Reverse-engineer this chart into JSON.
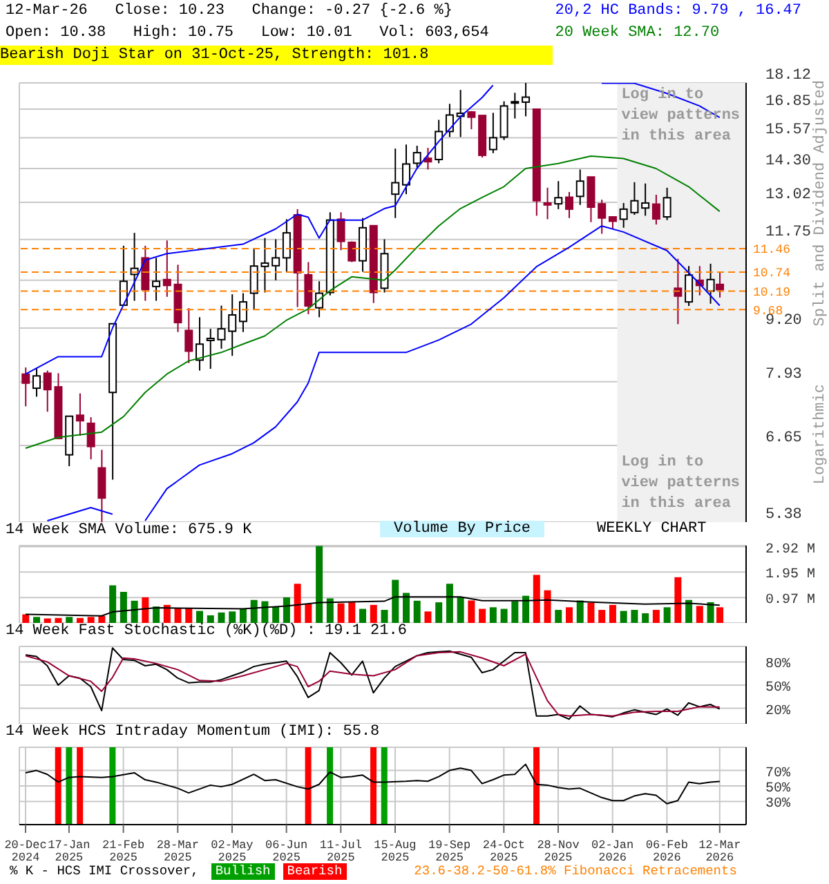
{
  "chart_data": [
    {
      "type": "candlestick",
      "title": "12-Mar-26   Close: 10.23   Change: -0.27 {-2.6 %}",
      "subtitle": "Open: 10.38   High: 10.75   Low: 10.01   Vol: 603,654",
      "y2label": "Split and Dividend Adjusted",
      "annotations": [
        "Bearish Doji Star on 31-Oct-25, Strength: 101.8",
        "Log in to view patterns in this area",
        "Logarithmic"
      ],
      "x": [
        "2024-12-20",
        "2024-12-27",
        "2025-01-03",
        "2025-01-10",
        "2025-01-17",
        "2025-01-24",
        "2025-01-31",
        "2025-02-07",
        "2025-02-14",
        "2025-02-21",
        "2025-02-28",
        "2025-03-07",
        "2025-03-14",
        "2025-03-21",
        "2025-03-28",
        "2025-04-04",
        "2025-04-11",
        "2025-04-18",
        "2025-04-25",
        "2025-05-02",
        "2025-05-09",
        "2025-05-16",
        "2025-05-23",
        "2025-05-30",
        "2025-06-06",
        "2025-06-13",
        "2025-06-20",
        "2025-06-27",
        "2025-07-04",
        "2025-07-11",
        "2025-07-18",
        "2025-07-25",
        "2025-08-01",
        "2025-08-08",
        "2025-08-15",
        "2025-08-22",
        "2025-08-29",
        "2025-09-05",
        "2025-09-12",
        "2025-09-19",
        "2025-09-26",
        "2025-10-03",
        "2025-10-10",
        "2025-10-17",
        "2025-10-24",
        "2025-10-31",
        "2025-11-07",
        "2025-11-14",
        "2025-11-21",
        "2025-11-28",
        "2025-12-05",
        "2025-12-12",
        "2025-12-19",
        "2025-12-26",
        "2026-01-02",
        "2026-01-09",
        "2026-01-16",
        "2026-01-23",
        "2026-01-30",
        "2026-02-06",
        "2026-02-13",
        "2026-02-20",
        "2026-02-27",
        "2026-03-06",
        "2026-03-12"
      ],
      "ohlc": [
        [
          8.1,
          8.25,
          7.41,
          7.9
        ],
        [
          7.79,
          8.23,
          7.61,
          8.06
        ],
        [
          8.12,
          8.18,
          7.3,
          7.76
        ],
        [
          7.82,
          8.12,
          6.78,
          6.78
        ],
        [
          6.48,
          7.21,
          6.28,
          7.21
        ],
        [
          7.23,
          7.68,
          6.83,
          7.12
        ],
        [
          7.07,
          7.19,
          6.4,
          6.63
        ],
        [
          6.25,
          6.57,
          5.38,
          5.75
        ],
        [
          7.7,
          9.31,
          6.05,
          9.31
        ],
        [
          9.8,
          11.55,
          9.8,
          10.47
        ],
        [
          10.67,
          11.97,
          9.92,
          10.85
        ],
        [
          11.17,
          11.55,
          9.92,
          10.23
        ],
        [
          10.32,
          11.17,
          9.92,
          10.47
        ],
        [
          10.52,
          11.72,
          10.03,
          10.35
        ],
        [
          10.38,
          10.96,
          9.1,
          9.34
        ],
        [
          9.14,
          9.72,
          8.35,
          8.63
        ],
        [
          8.42,
          9.48,
          8.18,
          8.8
        ],
        [
          8.89,
          9.18,
          8.22,
          8.94
        ],
        [
          8.91,
          9.79,
          8.69,
          9.18
        ],
        [
          9.12,
          10.1,
          8.52,
          9.54
        ],
        [
          9.37,
          10.13,
          9.1,
          9.89
        ],
        [
          10.13,
          11.45,
          9.67,
          10.92
        ],
        [
          10.91,
          11.8,
          10.15,
          11.01
        ],
        [
          10.93,
          11.76,
          10.5,
          11.17
        ],
        [
          11.17,
          12.43,
          10.75,
          11.97
        ],
        [
          12.58,
          12.78,
          9.75,
          10.72
        ],
        [
          10.66,
          11.04,
          9.56,
          9.78
        ],
        [
          9.73,
          10.47,
          9.48,
          10.13
        ],
        [
          10.15,
          12.67,
          10.07,
          12.4
        ],
        [
          12.43,
          12.67,
          11.41,
          11.69
        ],
        [
          11.66,
          11.69,
          11.04,
          11.08
        ],
        [
          11.08,
          12.47,
          10.75,
          12.14
        ],
        [
          12.21,
          12.21,
          9.86,
          10.15
        ],
        [
          10.27,
          11.76,
          10.15,
          11.3
        ],
        [
          13.32,
          15.11,
          12.47,
          13.75
        ],
        [
          13.67,
          15.28,
          13.32,
          14.48
        ],
        [
          14.51,
          15.23,
          14.34,
          14.94
        ],
        [
          14.71,
          15.14,
          14.26,
          14.57
        ],
        [
          14.66,
          16.36,
          14.51,
          15.84
        ],
        [
          15.84,
          17.1,
          15.6,
          16.58
        ],
        [
          16.52,
          17.77,
          15.6,
          16.66
        ],
        [
          16.72,
          16.76,
          15.94,
          16.48
        ],
        [
          16.56,
          16.56,
          14.74,
          14.83
        ],
        [
          15.07,
          16.68,
          14.92,
          15.57
        ],
        [
          15.6,
          17.22,
          15.47,
          17.0
        ],
        [
          17.14,
          17.63,
          16.42,
          17.2
        ],
        [
          17.18,
          18.12,
          16.52,
          17.42
        ],
        [
          16.85,
          16.85,
          12.55,
          13.08
        ],
        [
          13.0,
          13.56,
          12.43,
          12.93
        ],
        [
          12.97,
          13.81,
          12.78,
          13.19
        ],
        [
          13.21,
          13.4,
          12.47,
          12.78
        ],
        [
          13.24,
          14.26,
          12.93,
          13.81
        ],
        [
          13.97,
          13.97,
          12.33,
          12.85
        ],
        [
          12.97,
          13.12,
          11.94,
          12.47
        ],
        [
          12.51,
          12.51,
          12.11,
          12.36
        ],
        [
          12.43,
          13.0,
          12.14,
          12.78
        ],
        [
          12.66,
          13.77,
          12.58,
          13.08
        ],
        [
          12.82,
          13.72,
          12.55,
          13.0
        ],
        [
          12.96,
          13.3,
          12.25,
          12.44
        ],
        [
          12.51,
          13.56,
          12.4,
          13.19
        ],
        [
          10.27,
          11.14,
          9.3,
          10.05
        ],
        [
          9.89,
          10.92,
          9.78,
          10.65
        ],
        [
          10.5,
          10.92,
          10.07,
          10.35
        ],
        [
          10.19,
          10.99,
          9.84,
          10.52
        ],
        [
          10.38,
          10.75,
          10.01,
          10.23
        ]
      ],
      "colors": [
        "#990033",
        "#ffffff",
        "#990033",
        "#990033",
        "#ffffff",
        "#990033",
        "#990033",
        "#990033",
        "#ffffff",
        "#ffffff",
        "#ffffff",
        "#990033",
        "#ffffff",
        "#990033",
        "#990033",
        "#990033",
        "#ffffff",
        "#ffffff",
        "#ffffff",
        "#ffffff",
        "#ffffff",
        "#ffffff",
        "#ffffff",
        "#ffffff",
        "#ffffff",
        "#990033",
        "#990033",
        "#ffffff",
        "#ffffff",
        "#990033",
        "#990033",
        "#ffffff",
        "#990033",
        "#ffffff",
        "#ffffff",
        "#ffffff",
        "#ffffff",
        "#990033",
        "#ffffff",
        "#ffffff",
        "#ffffff",
        "#990033",
        "#990033",
        "#ffffff",
        "#ffffff",
        "#ffffff",
        "#ffffff",
        "#990033",
        "#990033",
        "#ffffff",
        "#990033",
        "#ffffff",
        "#990033",
        "#990033",
        "#990033",
        "#ffffff",
        "#ffffff",
        "#ffffff",
        "#990033",
        "#ffffff",
        "#990033",
        "#ffffff",
        "#990033",
        "#ffffff",
        "#990033"
      ],
      "series": [
        {
          "type": "line",
          "name": "20,2 HC Bands: 9.79 , 16.47",
          "color": "#0000ff",
          "x": [
            "2024-12-20",
            "2025-01-10",
            "2025-02-07",
            "2025-02-14",
            "2025-02-21",
            "2025-03-07",
            "2025-03-21",
            "2025-05-09",
            "2025-05-30",
            "2025-06-13",
            "2025-06-20",
            "2025-06-27",
            "2025-07-04",
            "2025-07-25",
            "2025-08-08",
            "2025-08-15",
            "2025-08-29",
            "2025-09-12",
            "2025-09-26",
            "2025-10-10",
            "2025-10-17",
            "2025-11-21",
            "2025-12-26",
            "2026-01-16",
            "2026-02-06",
            "2026-02-27",
            "2026-03-12"
          ],
          "values": [
            8.1,
            8.5,
            8.5,
            9.2,
            9.8,
            11.1,
            11.3,
            11.6,
            12.1,
            12.6,
            12.5,
            11.8,
            12.4,
            12.4,
            12.8,
            12.9,
            14.3,
            15.4,
            16.5,
            17.4,
            18.0,
            null,
            18.1,
            18.1,
            17.6,
            17.0,
            16.47
          ]
        },
        {
          "type": "line",
          "color": "#0000ff",
          "x": [
            "2025-01-03",
            "2025-01-17",
            "2025-01-31",
            "2025-02-14",
            "2025-02-21",
            "2025-03-07",
            "2025-03-21",
            "2025-04-11",
            "2025-05-02",
            "2025-05-16",
            "2025-05-30",
            "2025-06-13",
            "2025-06-20",
            "2025-06-27",
            "2025-07-04",
            "2025-08-08",
            "2025-08-22",
            "2025-09-12",
            "2025-10-03",
            "2025-10-24",
            "2025-11-14",
            "2025-12-05",
            "2025-12-26",
            "2026-01-09",
            "2026-02-06",
            "2026-02-27",
            "2026-03-12"
          ],
          "values": [
            5.4,
            5.5,
            5.6,
            5.5,
            null,
            5.4,
            5.9,
            6.3,
            6.5,
            6.7,
            7.0,
            7.5,
            7.9,
            8.6,
            8.6,
            8.6,
            8.6,
            8.9,
            9.3,
            10.0,
            10.9,
            11.5,
            12.2,
            12.0,
            11.4,
            10.4,
            9.79
          ]
        },
        {
          "type": "line",
          "name": "20 Week SMA: 12.70",
          "color": "#008000",
          "x": [
            "2024-12-20",
            "2025-01-10",
            "2025-02-07",
            "2025-02-21",
            "2025-03-07",
            "2025-03-21",
            "2025-04-04",
            "2025-04-25",
            "2025-05-09",
            "2025-05-23",
            "2025-06-06",
            "2025-06-20",
            "2025-07-04",
            "2025-07-18",
            "2025-08-08",
            "2025-08-15",
            "2025-08-29",
            "2025-09-12",
            "2025-09-26",
            "2025-10-10",
            "2025-10-24",
            "2025-11-07",
            "2025-11-28",
            "2025-12-19",
            "2026-01-09",
            "2026-01-30",
            "2026-02-20",
            "2026-03-12"
          ],
          "values": [
            6.6,
            6.8,
            6.9,
            7.2,
            7.7,
            8.1,
            8.4,
            8.6,
            8.8,
            9.0,
            9.4,
            9.7,
            10.2,
            10.6,
            10.5,
            10.8,
            11.5,
            12.2,
            12.8,
            13.2,
            13.6,
            14.3,
            14.5,
            14.8,
            14.7,
            14.3,
            13.6,
            12.7
          ]
        }
      ],
      "log": true,
      "ylim": [
        5.38,
        18.12
      ],
      "yticks": [
        5.38,
        6.65,
        7.93,
        {
          "value": 9.2,
          "label": "9.20"
        },
        {
          "value": 10.5,
          "label": null
        },
        11.75,
        13.02,
        {
          "value": 14.3,
          "label": "14.30"
        },
        15.57,
        16.85,
        18.12
      ],
      "xlim": [
        "2024-12-16",
        "2026-03-29"
      ],
      "xticks": [
        {
          "value": "2024-12-20",
          "label": null
        },
        {
          "value": "2025-01-17",
          "label": null
        },
        {
          "value": "2025-02-21",
          "label": null
        },
        {
          "value": "2025-03-28",
          "label": null
        },
        {
          "value": "2025-05-02",
          "label": null
        },
        {
          "value": "2025-06-06",
          "label": null
        },
        {
          "value": "2025-07-11",
          "label": null
        },
        {
          "value": "2025-08-15",
          "label": null
        },
        {
          "value": "2025-09-19",
          "label": null
        },
        {
          "value": "2025-10-24",
          "label": null
        },
        {
          "value": "2025-11-28",
          "label": null
        },
        {
          "value": "2026-01-02",
          "label": null
        },
        {
          "value": "2026-02-06",
          "label": null
        },
        {
          "value": "2026-03-12",
          "label": null
        }
      ],
      "ref_lines": [
        {
          "axis": "y",
          "value": 11.46,
          "label": "11.46",
          "color": "#ff8000",
          "line_style": "dashed"
        },
        {
          "axis": "y",
          "value": 10.74,
          "label": "10.74",
          "color": "#ff8000",
          "line_style": "dashed"
        },
        {
          "axis": "y",
          "value": 10.19,
          "label": "10.19",
          "color": "#ff8000",
          "line_style": "dashed"
        },
        {
          "axis": "y",
          "value": 9.68,
          "label": "9.68",
          "color": "#ff8000",
          "line_style": "dashed"
        }
      ],
      "bands": [
        {
          "axis": "x",
          "from": "2026-01-05",
          "to": "2026-03-29",
          "label": "Log in to view patterns in this area",
          "color": "#f0f0f0"
        }
      ],
      "grid": true,
      "legend": "top right",
      "tick_labels": "y"
    },
    {
      "type": "bar",
      "title": "14 Week SMA Volume: 675.9 K",
      "annotations": [
        "Volume By Price",
        "WEEKLY CHART"
      ],
      "x": [
        "2024-12-20",
        "2024-12-27",
        "2025-01-03",
        "2025-01-10",
        "2025-01-17",
        "2025-01-24",
        "2025-01-31",
        "2025-02-07",
        "2025-02-14",
        "2025-02-21",
        "2025-02-28",
        "2025-03-07",
        "2025-03-14",
        "2025-03-21",
        "2025-03-28",
        "2025-04-04",
        "2025-04-11",
        "2025-04-18",
        "2025-04-25",
        "2025-05-02",
        "2025-05-09",
        "2025-05-16",
        "2025-05-23",
        "2025-05-30",
        "2025-06-06",
        "2025-06-13",
        "2025-06-20",
        "2025-06-27",
        "2025-07-04",
        "2025-07-11",
        "2025-07-18",
        "2025-07-25",
        "2025-08-01",
        "2025-08-08",
        "2025-08-15",
        "2025-08-22",
        "2025-08-29",
        "2025-09-05",
        "2025-09-12",
        "2025-09-19",
        "2025-09-26",
        "2025-10-03",
        "2025-10-10",
        "2025-10-17",
        "2025-10-24",
        "2025-10-31",
        "2025-11-07",
        "2025-11-14",
        "2025-11-21",
        "2025-11-28",
        "2025-12-05",
        "2025-12-12",
        "2025-12-19",
        "2025-12-26",
        "2026-01-02",
        "2026-01-09",
        "2026-01-16",
        "2026-01-23",
        "2026-01-30",
        "2026-02-06",
        "2026-02-13",
        "2026-02-20",
        "2026-02-27",
        "2026-03-06",
        "2026-03-12"
      ],
      "values": [
        0.33,
        0.23,
        0.17,
        0.19,
        0.23,
        0.19,
        0.23,
        0.27,
        1.44,
        1.19,
        0.85,
        0.98,
        0.63,
        0.69,
        0.56,
        0.56,
        0.46,
        0.29,
        0.4,
        0.44,
        0.54,
        0.88,
        0.83,
        0.61,
        0.98,
        1.5,
        0.73,
        2.95,
        0.94,
        0.75,
        0.79,
        0.54,
        0.69,
        0.5,
        1.65,
        1.15,
        0.85,
        0.44,
        0.79,
        1.5,
        1.0,
        0.86,
        0.54,
        0.6,
        0.54,
        0.83,
        1.04,
        1.84,
        1.25,
        0.5,
        0.6,
        0.86,
        0.77,
        0.5,
        0.69,
        0.46,
        0.5,
        0.37,
        0.5,
        0.6,
        1.75,
        0.88,
        0.65,
        0.79,
        0.6
      ],
      "colors": [
        "#ff0000",
        "#008000",
        "#ff0000",
        "#ff0000",
        "#008000",
        "#ff0000",
        "#ff0000",
        "#ff0000",
        "#008000",
        "#008000",
        "#008000",
        "#ff0000",
        "#008000",
        "#ff0000",
        "#ff0000",
        "#ff0000",
        "#008000",
        "#008000",
        "#008000",
        "#008000",
        "#008000",
        "#008000",
        "#008000",
        "#008000",
        "#008000",
        "#ff0000",
        "#ff0000",
        "#008000",
        "#008000",
        "#ff0000",
        "#ff0000",
        "#008000",
        "#ff0000",
        "#008000",
        "#008000",
        "#008000",
        "#008000",
        "#ff0000",
        "#008000",
        "#008000",
        "#008000",
        "#ff0000",
        "#ff0000",
        "#008000",
        "#008000",
        "#008000",
        "#008000",
        "#ff0000",
        "#ff0000",
        "#008000",
        "#ff0000",
        "#008000",
        "#ff0000",
        "#ff0000",
        "#ff0000",
        "#008000",
        "#008000",
        "#008000",
        "#ff0000",
        "#008000",
        "#ff0000",
        "#008000",
        "#ff0000",
        "#008000",
        "#ff0000"
      ],
      "series": [
        {
          "type": "line",
          "color": "#000000",
          "x": [
            "2024-12-20",
            "2025-02-07",
            "2025-02-14",
            "2025-03-14",
            "2025-05-09",
            "2025-06-06",
            "2025-06-27",
            "2025-08-08",
            "2025-08-15",
            "2025-09-26",
            "2025-10-10",
            "2025-11-07",
            "2025-11-21",
            "2025-12-19",
            "2026-01-23",
            "2026-02-20",
            "2026-03-12"
          ],
          "values": [
            0.33,
            0.27,
            0.42,
            0.58,
            0.54,
            0.65,
            0.78,
            0.83,
            1.0,
            1.0,
            0.85,
            0.85,
            0.88,
            0.8,
            0.72,
            0.75,
            0.68
          ]
        }
      ],
      "ylim": [
        0,
        2.96
      ],
      "yticks": [
        {
          "value": 0.97,
          "label": "0.97 M"
        },
        {
          "value": 1.95,
          "label": "1.95 M"
        },
        {
          "value": 2.92,
          "label": "2.92 M"
        }
      ],
      "xlim": [
        "2024-12-16",
        "2026-03-29"
      ],
      "xticks": [
        {
          "value": "2024-12-20",
          "label": null
        },
        {
          "value": "2025-01-17",
          "label": null
        },
        {
          "value": "2025-02-21",
          "label": null
        },
        {
          "value": "2025-03-28",
          "label": null
        },
        {
          "value": "2025-05-02",
          "label": null
        },
        {
          "value": "2025-06-06",
          "label": null
        },
        {
          "value": "2025-07-11",
          "label": null
        },
        {
          "value": "2025-08-15",
          "label": null
        },
        {
          "value": "2025-09-19",
          "label": null
        },
        {
          "value": "2025-10-24",
          "label": null
        },
        {
          "value": "2025-11-28",
          "label": null
        },
        {
          "value": "2026-01-02",
          "label": null
        },
        {
          "value": "2026-02-06",
          "label": null
        },
        {
          "value": "2026-03-12",
          "label": null
        }
      ],
      "grid": true,
      "tick_labels": "y"
    },
    {
      "type": "line",
      "title": "14 Week Fast Stochastic (%K)(%D) : 19.1 21.6",
      "x": [
        "2024-12-20",
        "2024-12-27",
        "2025-01-03",
        "2025-01-10",
        "2025-01-17",
        "2025-01-24",
        "2025-01-31",
        "2025-02-07",
        "2025-02-14",
        "2025-02-21",
        "2025-02-28",
        "2025-03-07",
        "2025-03-14",
        "2025-03-21",
        "2025-03-28",
        "2025-04-04",
        "2025-04-11",
        "2025-04-18",
        "2025-04-25",
        "2025-05-02",
        "2025-05-09",
        "2025-05-16",
        "2025-05-23",
        "2025-05-30",
        "2025-06-06",
        "2025-06-13",
        "2025-06-20",
        "2025-06-27",
        "2025-07-04",
        "2025-07-11",
        "2025-07-18",
        "2025-07-25",
        "2025-08-01",
        "2025-08-08",
        "2025-08-15",
        "2025-08-22",
        "2025-08-29",
        "2025-09-05",
        "2025-09-12",
        "2025-09-19",
        "2025-09-26",
        "2025-10-03",
        "2025-10-10",
        "2025-10-17",
        "2025-10-24",
        "2025-10-31",
        "2025-11-07",
        "2025-11-14",
        "2025-11-21",
        "2025-11-28",
        "2025-12-05",
        "2025-12-12",
        "2025-12-19",
        "2025-12-26",
        "2026-01-02",
        "2026-01-09",
        "2026-01-16",
        "2026-01-23",
        "2026-01-30",
        "2026-02-06",
        "2026-02-13",
        "2026-02-20",
        "2026-02-27",
        "2026-03-06",
        "2026-03-12"
      ],
      "series": [
        {
          "type": "line",
          "color": "#000000",
          "values": [
            89,
            87,
            75,
            50,
            62,
            59,
            48,
            17,
            98,
            83,
            82,
            75,
            77,
            70,
            59,
            53,
            54,
            54,
            57,
            62,
            67,
            74,
            77,
            79,
            81,
            61,
            34,
            43,
            92,
            79,
            63,
            81,
            40,
            59,
            74,
            81,
            88,
            92,
            93,
            94,
            90,
            86,
            66,
            70,
            81,
            92,
            92,
            10,
            10,
            12,
            6,
            23,
            12,
            11,
            9,
            14,
            18,
            15,
            12,
            19,
            11,
            27,
            22,
            25,
            19.1
          ]
        },
        {
          "type": "line",
          "color": "#990033",
          "x": [
            "2024-12-20",
            "2025-01-03",
            "2025-01-17",
            "2025-01-31",
            "2025-02-07",
            "2025-02-14",
            "2025-02-21",
            "2025-02-28",
            "2025-03-14",
            "2025-03-28",
            "2025-04-11",
            "2025-04-25",
            "2025-05-09",
            "2025-05-23",
            "2025-06-06",
            "2025-06-13",
            "2025-06-20",
            "2025-06-27",
            "2025-07-04",
            "2025-07-18",
            "2025-08-01",
            "2025-08-15",
            "2025-08-29",
            "2025-09-12",
            "2025-09-26",
            "2025-10-10",
            "2025-10-24",
            "2025-11-07",
            "2025-11-14",
            "2025-11-21",
            "2025-11-28",
            "2025-12-05",
            "2025-12-19",
            "2026-01-02",
            "2026-01-16",
            "2026-01-30",
            "2026-02-13",
            "2026-02-27",
            "2026-03-12"
          ],
          "values": [
            88,
            80,
            62,
            55,
            42,
            60,
            85,
            84,
            78,
            70,
            56,
            55,
            62,
            70,
            78,
            74,
            48,
            55,
            68,
            64,
            62,
            70,
            88,
            92,
            93,
            85,
            75,
            90,
            60,
            30,
            12,
            10,
            12,
            10,
            15,
            16,
            16,
            22,
            21.6
          ]
        }
      ],
      "ylim": [
        0,
        100
      ],
      "yticks": [
        {
          "value": 20,
          "label": "20%"
        },
        {
          "value": 50,
          "label": "50%"
        },
        {
          "value": 80,
          "label": "80%"
        }
      ],
      "xlim": [
        "2024-12-16",
        "2026-03-29"
      ],
      "xticks": [
        {
          "value": "2024-12-20",
          "label": null
        },
        {
          "value": "2025-01-17",
          "label": null
        },
        {
          "value": "2025-02-21",
          "label": null
        },
        {
          "value": "2025-03-28",
          "label": null
        },
        {
          "value": "2025-05-02",
          "label": null
        },
        {
          "value": "2025-06-06",
          "label": null
        },
        {
          "value": "2025-07-11",
          "label": null
        },
        {
          "value": "2025-08-15",
          "label": null
        },
        {
          "value": "2025-09-19",
          "label": null
        },
        {
          "value": "2025-10-24",
          "label": null
        },
        {
          "value": "2025-11-28",
          "label": null
        },
        {
          "value": "2026-01-02",
          "label": null
        },
        {
          "value": "2026-02-06",
          "label": null
        },
        {
          "value": "2026-03-12",
          "label": null
        }
      ],
      "grid": true,
      "tick_labels": "y"
    },
    {
      "type": "line",
      "title": "14 Week HCS Intraday Momentum (IMI): 55.8",
      "annotations": [
        "% K - HCS IMI Crossover,",
        "Bullish",
        "Bearish",
        "23.6-38.2-50-61.8% Fibonacci Retracements"
      ],
      "series": [
        {
          "type": "line",
          "color": "#000000",
          "x": [
            "2024-12-20",
            "2024-12-27",
            "2025-01-03",
            "2025-01-10",
            "2025-01-17",
            "2025-01-24",
            "2025-02-07",
            "2025-02-14",
            "2025-02-28",
            "2025-03-07",
            "2025-03-14",
            "2025-03-28",
            "2025-04-04",
            "2025-04-18",
            "2025-04-25",
            "2025-05-02",
            "2025-05-16",
            "2025-05-23",
            "2025-05-30",
            "2025-06-13",
            "2025-06-20",
            "2025-06-27",
            "2025-07-04",
            "2025-07-11",
            "2025-07-18",
            "2025-07-25",
            "2025-08-01",
            "2025-08-08",
            "2025-08-22",
            "2025-08-29",
            "2025-09-05",
            "2025-09-12",
            "2025-09-19",
            "2025-09-26",
            "2025-10-03",
            "2025-10-10",
            "2025-10-17",
            "2025-10-24",
            "2025-10-31",
            "2025-11-07",
            "2025-11-14",
            "2025-11-21",
            "2025-11-28",
            "2025-12-05",
            "2025-12-12",
            "2025-12-19",
            "2025-12-26",
            "2026-01-02",
            "2026-01-09",
            "2026-01-16",
            "2026-01-23",
            "2026-01-30",
            "2026-02-06",
            "2026-02-13",
            "2026-02-20",
            "2026-02-27",
            "2026-03-06",
            "2026-03-12"
          ],
          "values": [
            67,
            70,
            65,
            55,
            61,
            62,
            61,
            62,
            67,
            58,
            55,
            47,
            41,
            51,
            49,
            52,
            65,
            57,
            58,
            49,
            46,
            52,
            68,
            61,
            62,
            64,
            55,
            55,
            56,
            57,
            56,
            62,
            70,
            73,
            70,
            53,
            58,
            64,
            65,
            78,
            52,
            51,
            48,
            46,
            47,
            41,
            35,
            31,
            31,
            37,
            40,
            38,
            27,
            31,
            55,
            53,
            55,
            55.8
          ]
        }
      ],
      "bands": [
        {
          "axis": "x",
          "from": "2025-01-08",
          "to": "2025-01-12",
          "color": "#ff0000"
        },
        {
          "axis": "x",
          "from": "2025-01-15",
          "to": "2025-01-19",
          "color": "#00a000"
        },
        {
          "axis": "x",
          "from": "2025-01-22",
          "to": "2025-01-26",
          "color": "#ff0000"
        },
        {
          "axis": "x",
          "from": "2025-02-12",
          "to": "2025-02-16",
          "color": "#00a000"
        },
        {
          "axis": "x",
          "from": "2025-06-18",
          "to": "2025-06-22",
          "color": "#ff0000"
        },
        {
          "axis": "x",
          "from": "2025-07-02",
          "to": "2025-07-06",
          "color": "#00a000"
        },
        {
          "axis": "x",
          "from": "2025-07-30",
          "to": "2025-08-03",
          "color": "#ff0000"
        },
        {
          "axis": "x",
          "from": "2025-08-06",
          "to": "2025-08-10",
          "color": "#00a000"
        },
        {
          "axis": "x",
          "from": "2025-11-12",
          "to": "2025-11-16",
          "color": "#ff0000"
        }
      ],
      "ylim": [
        0,
        100
      ],
      "yticks": [
        {
          "value": 30,
          "label": "30%"
        },
        {
          "value": 50,
          "label": "50%"
        },
        {
          "value": 70,
          "label": "70%"
        }
      ],
      "xlim": [
        "2024-12-16",
        "2026-03-29"
      ],
      "xticks": [
        {
          "value": "2024-12-20",
          "label": "20-Dec\n2024"
        },
        {
          "value": "2025-01-17",
          "label": "17-Jan\n2025"
        },
        {
          "value": "2025-02-21",
          "label": "21-Feb\n2025"
        },
        {
          "value": "2025-03-28",
          "label": "28-Mar\n2025"
        },
        {
          "value": "2025-05-02",
          "label": "02-May\n2025"
        },
        {
          "value": "2025-06-06",
          "label": "06-Jun\n2025"
        },
        {
          "value": "2025-07-11",
          "label": "11-Jul\n2025"
        },
        {
          "value": "2025-08-15",
          "label": "15-Aug\n2025"
        },
        {
          "value": "2025-09-19",
          "label": "19-Sep\n2025"
        },
        {
          "value": "2025-10-24",
          "label": "24-Oct\n2025"
        },
        {
          "value": "2025-11-28",
          "label": "28-Nov\n2025"
        },
        {
          "value": "2026-01-02",
          "label": "02-Jan\n2026"
        },
        {
          "value": "2026-02-06",
          "label": "06-Feb\n2026"
        },
        {
          "value": "2026-03-12",
          "label": "12-Mar\n2026"
        }
      ],
      "grid": true
    }
  ]
}
